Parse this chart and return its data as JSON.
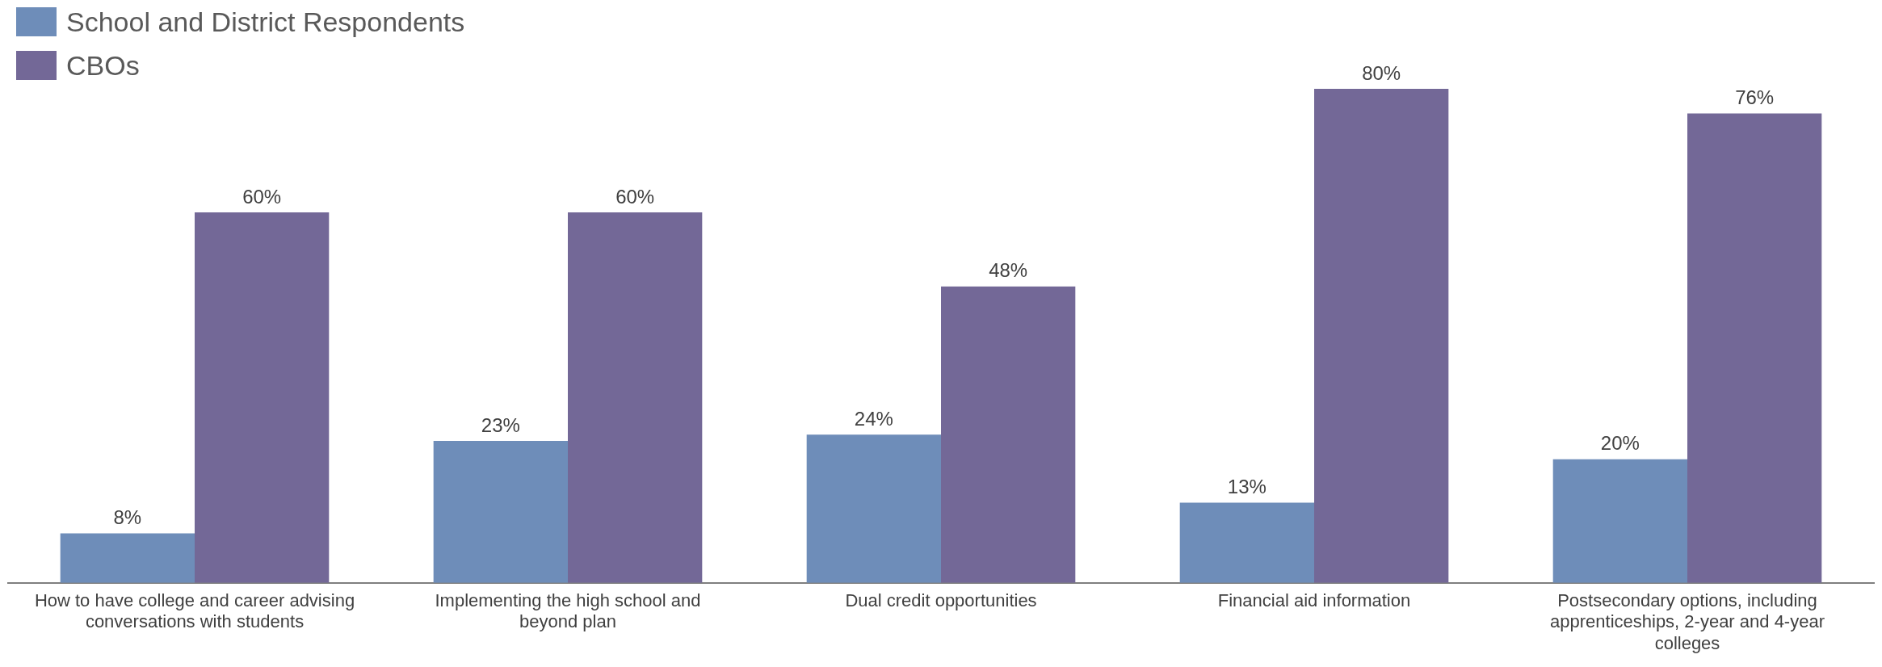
{
  "chart_data": {
    "type": "bar",
    "categories": [
      "How to have college and career advising conversations with students",
      "Implementing the high school and beyond plan",
      "Dual credit opportunities",
      "Financial aid information",
      "Postsecondary options, including apprenticeships, 2-year and 4-year colleges"
    ],
    "series": [
      {
        "name": "School and District Respondents",
        "color": "#6e8db9",
        "values": [
          8,
          23,
          24,
          13,
          20
        ],
        "value_labels": [
          "8%",
          "23%",
          "24%",
          "13%",
          "20%"
        ]
      },
      {
        "name": "CBOs",
        "color": "#736897",
        "values": [
          60,
          60,
          48,
          80,
          76
        ],
        "value_labels": [
          "60%",
          "60%",
          "48%",
          "80%",
          "76%"
        ]
      }
    ],
    "legend": "top left",
    "grid": false
  }
}
